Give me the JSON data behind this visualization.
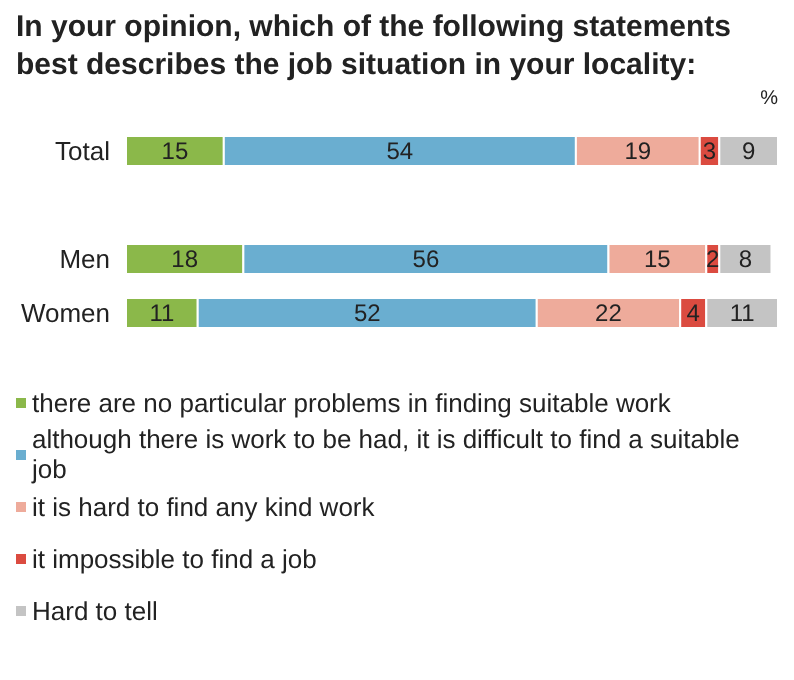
{
  "chart_data": {
    "type": "bar",
    "orientation": "horizontal",
    "stacked": true,
    "title": "In your opinion, which of the following statements best describes the job situation in your locality:",
    "categories": [
      "Total",
      null,
      "Men",
      "Women"
    ],
    "series": [
      {
        "name": "there are no particular problems in finding suitable work",
        "color": "#8bb84a",
        "values": [
          15,
          null,
          18,
          11
        ]
      },
      {
        "name": "although there is work to be had, it is difficult to find a suitable job",
        "color": "#6aaed0",
        "values": [
          54,
          null,
          56,
          52
        ]
      },
      {
        "name": "it is hard to find any kind work",
        "color": "#eeab9b",
        "values": [
          19,
          null,
          15,
          22
        ]
      },
      {
        "name": "it impossible to find a job",
        "color": "#db4b40",
        "values": [
          3,
          null,
          2,
          4
        ]
      },
      {
        "name": "Hard to tell",
        "color": "#c4c4c4",
        "values": [
          9,
          null,
          8,
          11
        ]
      }
    ],
    "data_labels": true,
    "legend": "bottom",
    "grid": false,
    "tick_labels": "y",
    "annotations": [
      "%"
    ]
  }
}
